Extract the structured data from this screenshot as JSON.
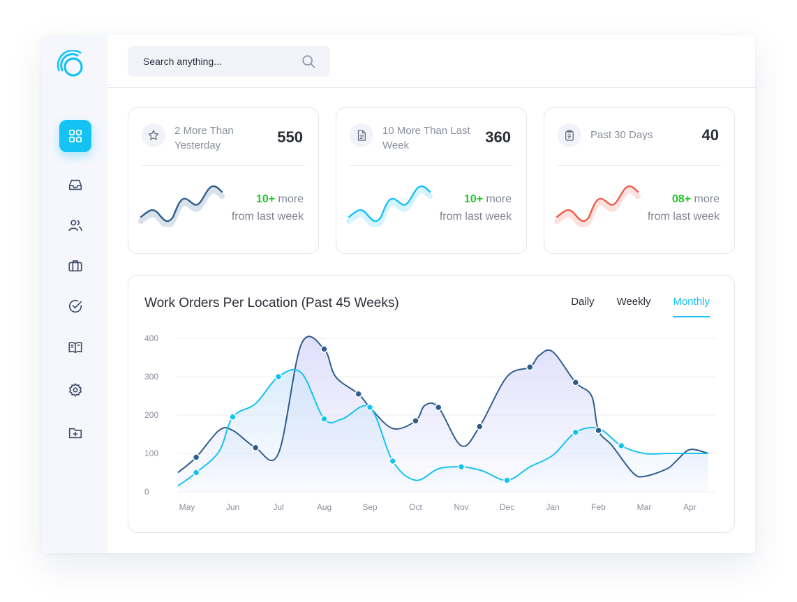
{
  "search": {
    "placeholder": "Search anything..."
  },
  "sidebar": {
    "items": [
      {
        "icon": "grid-icon",
        "active": true
      },
      {
        "icon": "inbox-icon"
      },
      {
        "icon": "users-icon"
      },
      {
        "icon": "briefcase-icon"
      },
      {
        "icon": "check-circle-icon"
      },
      {
        "icon": "book-icon"
      },
      {
        "icon": "settings-icon"
      },
      {
        "icon": "folder-plus-icon"
      }
    ]
  },
  "cards": [
    {
      "icon": "star-icon",
      "label": "2 More Than Yesterday",
      "value": "550",
      "delta_num": "10+",
      "delta_text": " more",
      "delta_sub": "from last week",
      "color": "#2e5d8c"
    },
    {
      "icon": "file-icon",
      "label": "10 More Than Last Week",
      "value": "360",
      "delta_num": "10+",
      "delta_text": " more",
      "delta_sub": "from last week",
      "color": "#14c2f3"
    },
    {
      "icon": "clipboard-icon",
      "label": "Past 30 Days",
      "value": "40",
      "delta_num": "08+",
      "delta_text": " more",
      "delta_sub": "from last week",
      "color": "#f25b4b"
    }
  ],
  "chart": {
    "title": "Work Orders Per Location (Past 45 Weeks)",
    "tabs": [
      "Daily",
      "Weekly",
      "Monthly"
    ],
    "active_tab": "Monthly"
  },
  "chart_data": {
    "type": "area",
    "title": "Work Orders Per Location (Past 45 Weeks)",
    "categories": [
      "May",
      "Jun",
      "Jul",
      "Aug",
      "Sep",
      "Oct",
      "Nov",
      "Dec",
      "Jan",
      "Feb",
      "Mar",
      "Apr"
    ],
    "ylim": [
      0,
      400
    ],
    "yticks": [
      0,
      100,
      200,
      300,
      400
    ],
    "grid": true,
    "series": [
      {
        "color": "#2e5d8c",
        "fill": "#d9d9fb",
        "x": [
          -0.2,
          0.2,
          0.7,
          1.0,
          1.5,
          2.0,
          2.5,
          3.0,
          3.25,
          3.75,
          4.0,
          4.5,
          5.0,
          5.2,
          5.5,
          6.0,
          6.4,
          7.0,
          7.5,
          7.7,
          8.0,
          8.5,
          8.85,
          9.0,
          9.3,
          9.75,
          10.0,
          10.5,
          10.7,
          11.0,
          11.4
        ],
        "values": [
          50,
          90,
          160,
          160,
          115,
          100,
          385,
          372,
          300,
          255,
          220,
          165,
          185,
          225,
          220,
          120,
          170,
          300,
          325,
          355,
          365,
          285,
          250,
          160,
          120,
          50,
          40,
          60,
          80,
          110,
          100
        ],
        "marker_indices": [
          1,
          4,
          7,
          9,
          12,
          14,
          16,
          18,
          21,
          23
        ]
      },
      {
        "color": "#14c2f3",
        "fill": "#cfe6fb",
        "x": [
          -0.2,
          0.2,
          0.7,
          1.0,
          1.5,
          2.0,
          2.5,
          3.0,
          3.4,
          4.0,
          4.5,
          5.0,
          5.5,
          6.0,
          6.45,
          7.0,
          7.5,
          8.0,
          8.5,
          9.0,
          9.5,
          10.0,
          10.5,
          10.8,
          11.0,
          11.4
        ],
        "values": [
          15,
          50,
          105,
          195,
          230,
          300,
          310,
          190,
          190,
          220,
          80,
          30,
          60,
          65,
          55,
          30,
          65,
          95,
          155,
          165,
          120,
          100,
          100,
          100,
          100,
          100
        ],
        "marker_indices": [
          1,
          3,
          5,
          7,
          9,
          10,
          13,
          15,
          18,
          20
        ]
      }
    ]
  }
}
